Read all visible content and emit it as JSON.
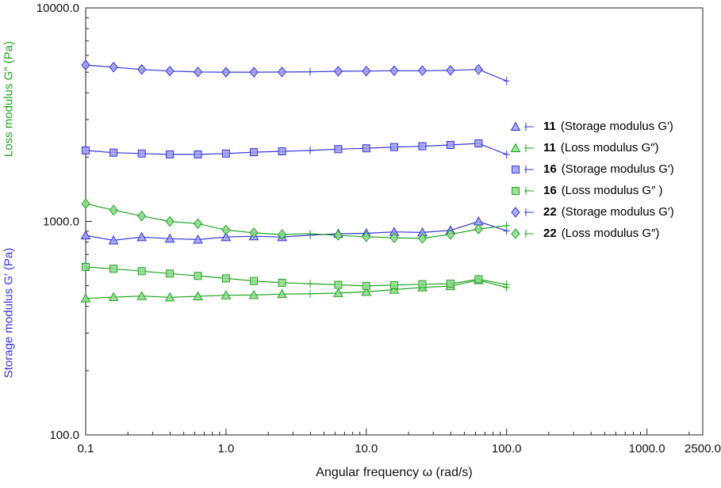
{
  "chart_data": {
    "type": "line",
    "title": "",
    "xlabel": "Angular frequency  ω  (rad/s)",
    "ylabel_loss": "Loss modulus  G″  (Pa)",
    "ylabel_storage": "Storage modulus  G′  (Pa)",
    "x_scale": "log",
    "y_scale": "log",
    "xlim": [
      0.1,
      2500.0
    ],
    "ylim": [
      100.0,
      10000.0
    ],
    "x_ticks": [
      0.1,
      1.0,
      10.0,
      100.0,
      1000.0,
      2500.0
    ],
    "x_tick_labels": [
      "0.1",
      "1.0",
      "10.0",
      "100.0",
      "1000.0",
      "2500.0"
    ],
    "y_ticks": [
      100.0,
      1000.0,
      10000.0
    ],
    "y_tick_labels": [
      "100.0",
      "1000.0",
      "10000.0"
    ],
    "grid": false,
    "legend_position": "right-middle",
    "error_bar_indices": [
      8,
      15
    ],
    "colors": {
      "blue_line": "#3434d6",
      "blue_fill": "#9c9cf2",
      "green_line": "#1ea41e",
      "green_fill": "#8fd98f"
    },
    "x": [
      0.1,
      0.158,
      0.251,
      0.398,
      0.631,
      1.0,
      1.58,
      2.51,
      3.98,
      6.31,
      10.0,
      15.8,
      25.1,
      39.8,
      63.1,
      100.0
    ],
    "series": [
      {
        "id": "11",
        "label": "(Storage modulus  G′)",
        "marker": "triangle",
        "color": "blue",
        "y": [
          860,
          815,
          845,
          830,
          822,
          845,
          852,
          845,
          862,
          875,
          880,
          893,
          888,
          908,
          1000,
          903
        ]
      },
      {
        "id": "11",
        "label": "(Loss modulus  G″)",
        "marker": "triangle",
        "color": "green",
        "y": [
          436,
          442,
          447,
          441,
          446,
          451,
          452,
          457,
          458,
          462,
          468,
          479,
          491,
          498,
          531,
          490
        ]
      },
      {
        "id": "16",
        "label": "(Storage modulus  G′)",
        "marker": "square",
        "color": "blue",
        "y": [
          2150,
          2100,
          2080,
          2060,
          2060,
          2080,
          2110,
          2130,
          2150,
          2180,
          2200,
          2230,
          2250,
          2280,
          2320,
          2060
        ]
      },
      {
        "id": "16",
        "label": "(Loss modulus  G″ )",
        "marker": "square",
        "color": "green",
        "y": [
          612,
          600,
          585,
          570,
          556,
          541,
          526,
          516,
          511,
          505,
          499,
          503,
          508,
          511,
          536,
          506
        ]
      },
      {
        "id": "22",
        "label": "(Storage modulus  G′)",
        "marker": "diamond",
        "color": "blue",
        "y": [
          5400,
          5280,
          5150,
          5060,
          5010,
          5000,
          5000,
          5010,
          5020,
          5050,
          5060,
          5080,
          5080,
          5100,
          5150,
          4550
        ]
      },
      {
        "id": "22",
        "label": "(Loss modulus  G″)",
        "marker": "diamond",
        "color": "green",
        "y": [
          1210,
          1130,
          1060,
          1000,
          976,
          912,
          884,
          868,
          876,
          860,
          848,
          838,
          833,
          870,
          921,
          956
        ]
      }
    ]
  }
}
